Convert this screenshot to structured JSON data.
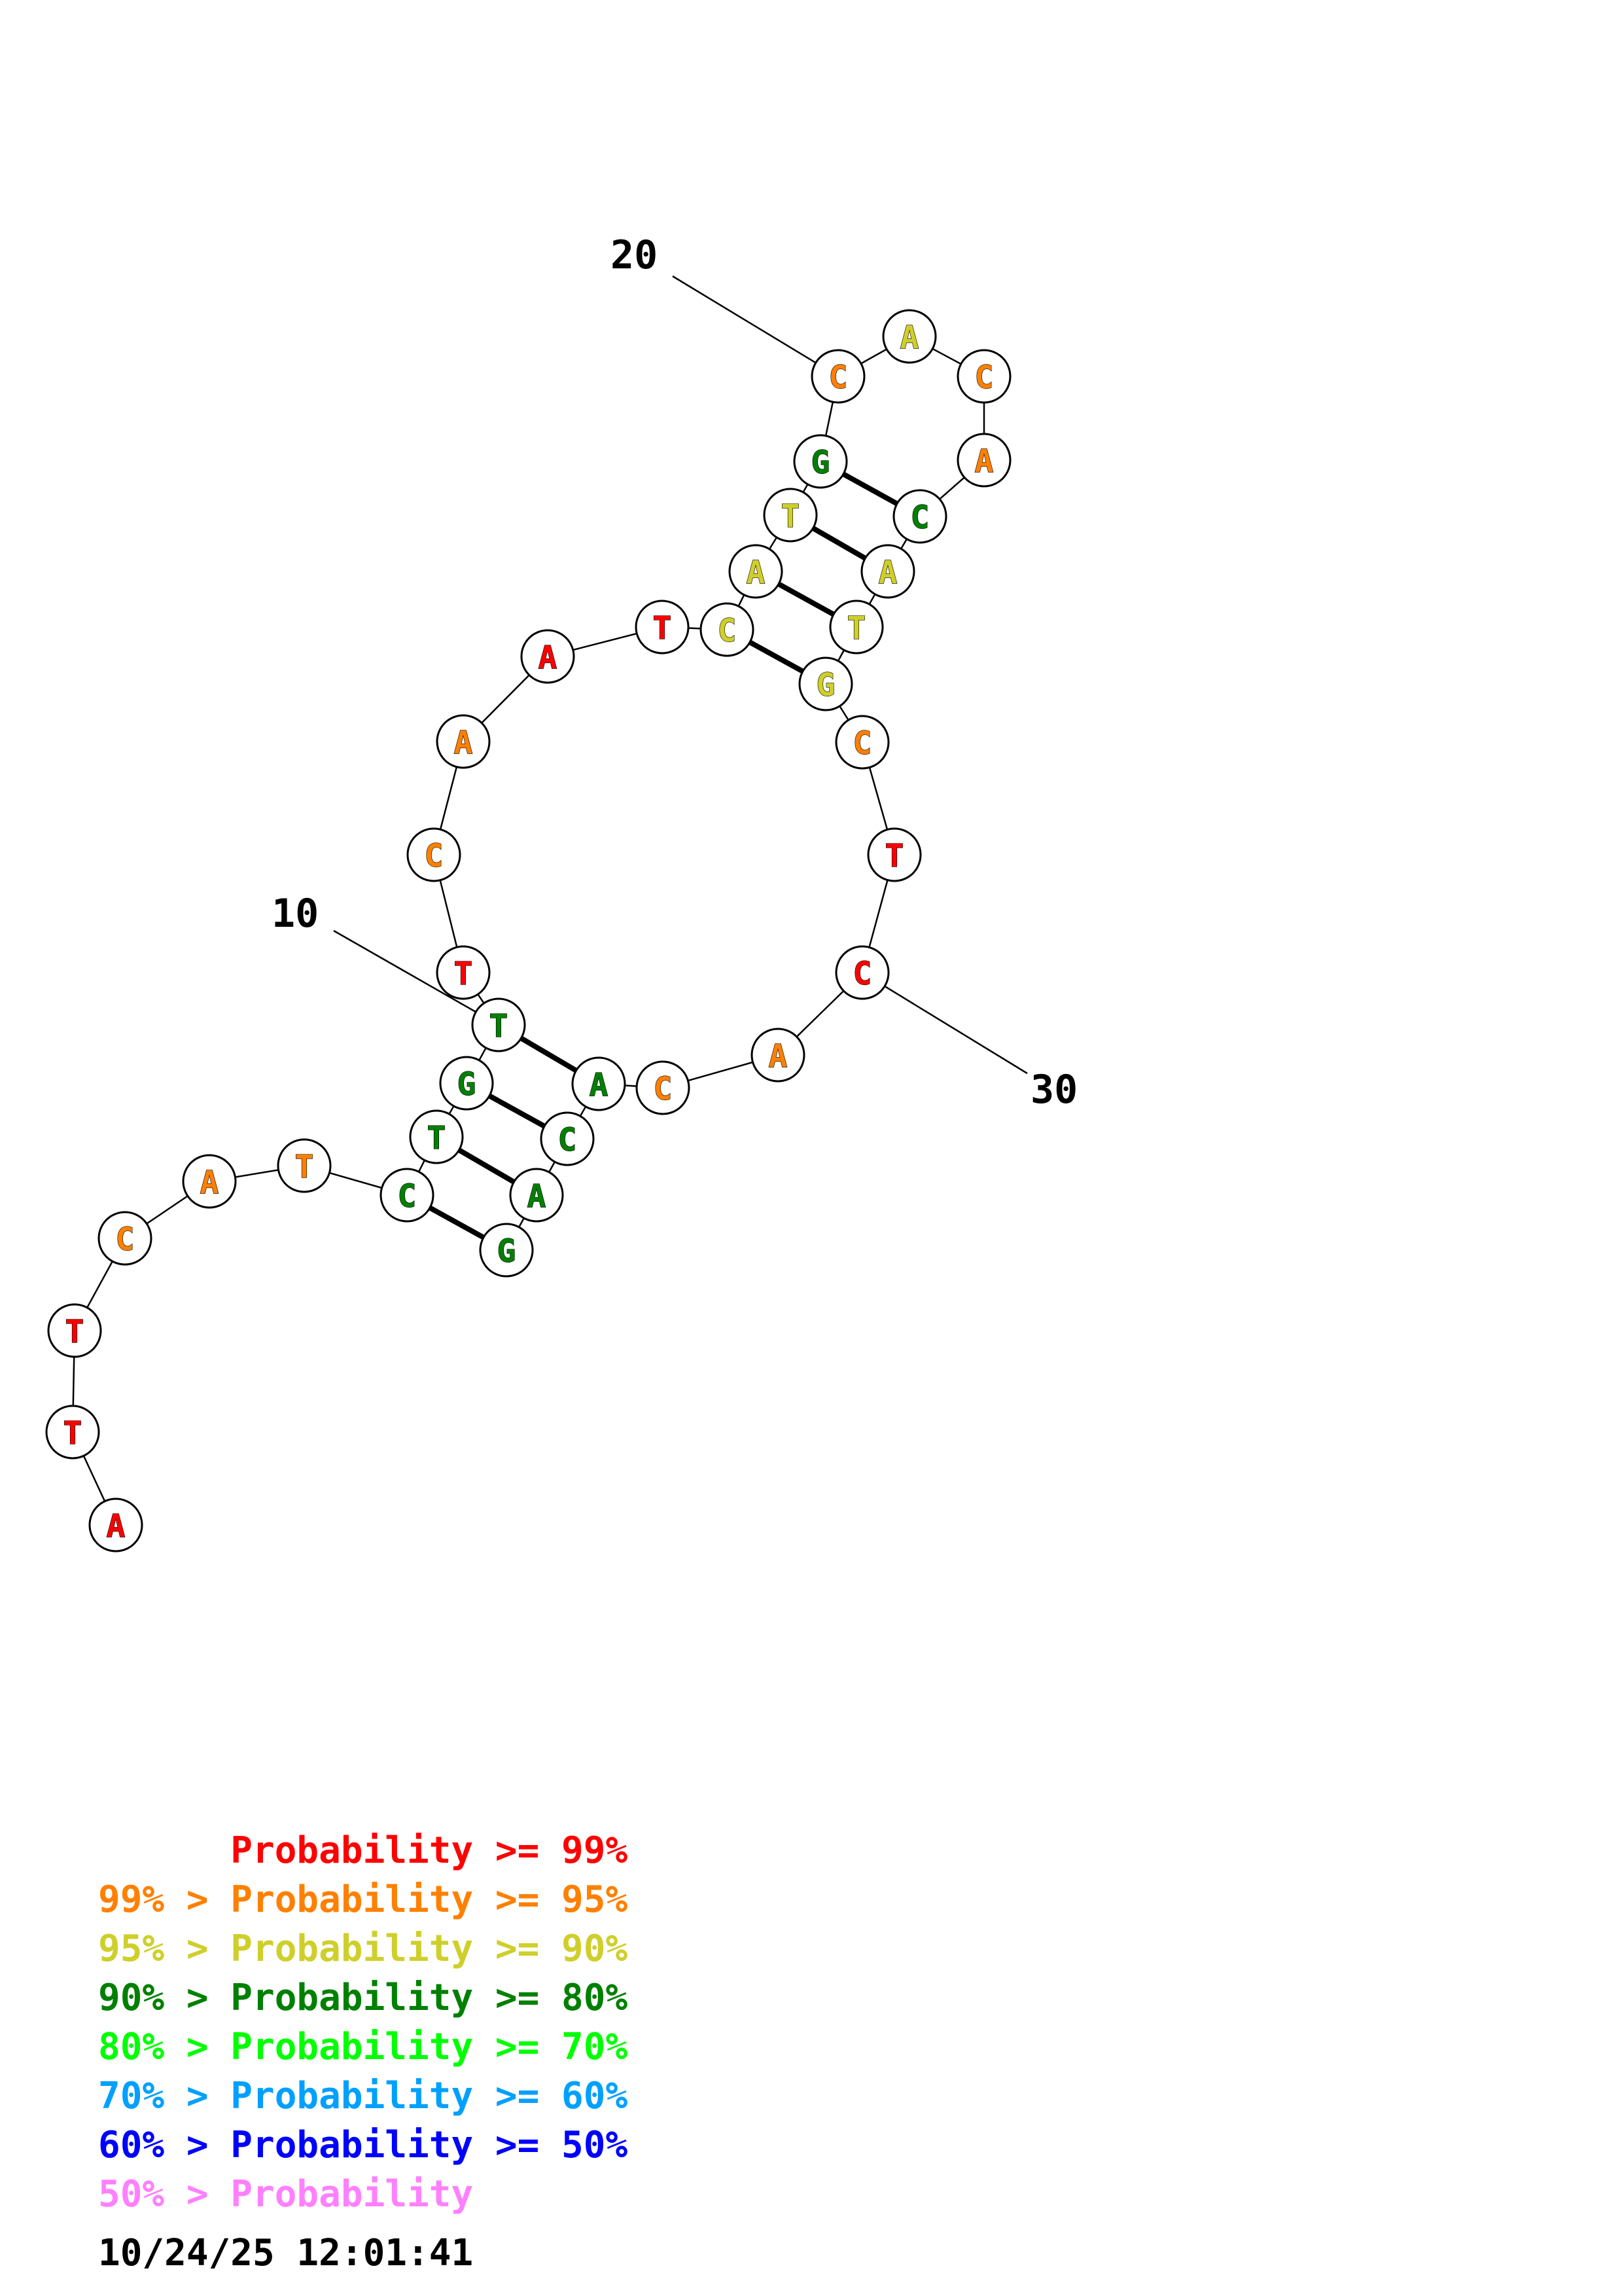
{
  "sequence": [
    "A",
    "T",
    "T",
    "C",
    "A",
    "T",
    "C",
    "T",
    "G",
    "T",
    "T",
    "C",
    "A",
    "A",
    "T",
    "C",
    "A",
    "T",
    "G",
    "C",
    "A",
    "C",
    "A",
    "C",
    "A",
    "T",
    "G",
    "C",
    "T",
    "C",
    "A",
    "C",
    "A",
    "C",
    "A",
    "G"
  ],
  "nucleotides": [
    {
      "pos": 1,
      "base": "A",
      "prob_class": "p99"
    },
    {
      "pos": 2,
      "base": "T",
      "prob_class": "p99"
    },
    {
      "pos": 3,
      "base": "T",
      "prob_class": "p99"
    },
    {
      "pos": 4,
      "base": "C",
      "prob_class": "p95"
    },
    {
      "pos": 5,
      "base": "A",
      "prob_class": "p95"
    },
    {
      "pos": 6,
      "base": "T",
      "prob_class": "p95"
    },
    {
      "pos": 7,
      "base": "C",
      "prob_class": "p80"
    },
    {
      "pos": 8,
      "base": "T",
      "prob_class": "p80"
    },
    {
      "pos": 9,
      "base": "G",
      "prob_class": "p80"
    },
    {
      "pos": 10,
      "base": "T",
      "prob_class": "p80"
    },
    {
      "pos": 11,
      "base": "T",
      "prob_class": "p99"
    },
    {
      "pos": 12,
      "base": "C",
      "prob_class": "p95"
    },
    {
      "pos": 13,
      "base": "A",
      "prob_class": "p95"
    },
    {
      "pos": 14,
      "base": "A",
      "prob_class": "p99"
    },
    {
      "pos": 15,
      "base": "T",
      "prob_class": "p99"
    },
    {
      "pos": 16,
      "base": "C",
      "prob_class": "p90"
    },
    {
      "pos": 17,
      "base": "A",
      "prob_class": "p90"
    },
    {
      "pos": 18,
      "base": "T",
      "prob_class": "p90"
    },
    {
      "pos": 19,
      "base": "G",
      "prob_class": "p80"
    },
    {
      "pos": 20,
      "base": "C",
      "prob_class": "p95"
    },
    {
      "pos": 21,
      "base": "A",
      "prob_class": "p90"
    },
    {
      "pos": 22,
      "base": "C",
      "prob_class": "p95"
    },
    {
      "pos": 23,
      "base": "A",
      "prob_class": "p95"
    },
    {
      "pos": 24,
      "base": "C",
      "prob_class": "p80"
    },
    {
      "pos": 25,
      "base": "A",
      "prob_class": "p90"
    },
    {
      "pos": 26,
      "base": "T",
      "prob_class": "p90"
    },
    {
      "pos": 27,
      "base": "G",
      "prob_class": "p90"
    },
    {
      "pos": 28,
      "base": "C",
      "prob_class": "p95"
    },
    {
      "pos": 29,
      "base": "T",
      "prob_class": "p99"
    },
    {
      "pos": 30,
      "base": "C",
      "prob_class": "p99"
    },
    {
      "pos": 31,
      "base": "A",
      "prob_class": "p95"
    },
    {
      "pos": 32,
      "base": "C",
      "prob_class": "p95"
    },
    {
      "pos": 33,
      "base": "A",
      "prob_class": "p80"
    },
    {
      "pos": 34,
      "base": "C",
      "prob_class": "p80"
    },
    {
      "pos": 35,
      "base": "A",
      "prob_class": "p80"
    },
    {
      "pos": 36,
      "base": "G",
      "prob_class": "p80"
    }
  ],
  "base_pairs": [
    [
      7,
      36
    ],
    [
      8,
      35
    ],
    [
      9,
      34
    ],
    [
      10,
      33
    ],
    [
      16,
      27
    ],
    [
      17,
      26
    ],
    [
      18,
      25
    ],
    [
      19,
      24
    ]
  ],
  "position_markers": [
    {
      "pos": 10,
      "label": "10"
    },
    {
      "pos": 20,
      "label": "20"
    },
    {
      "pos": 30,
      "label": "30"
    }
  ],
  "legend": [
    {
      "id": "p99",
      "lower": "",
      "sep": "",
      "label": "Probability",
      "op": ">=",
      "upper": "99%",
      "color": "#ff0000"
    },
    {
      "id": "p95",
      "lower": "99%",
      "sep": ">",
      "label": "Probability",
      "op": ">=",
      "upper": "95%",
      "color": "#ff8000"
    },
    {
      "id": "p90",
      "lower": "95%",
      "sep": ">",
      "label": "Probability",
      "op": ">=",
      "upper": "90%",
      "color": "#cfcf2b"
    },
    {
      "id": "p80",
      "lower": "90%",
      "sep": ">",
      "label": "Probability",
      "op": ">=",
      "upper": "80%",
      "color": "#008000"
    },
    {
      "id": "p70",
      "lower": "80%",
      "sep": ">",
      "label": "Probability",
      "op": ">=",
      "upper": "70%",
      "color": "#00ff00"
    },
    {
      "id": "p60",
      "lower": "70%",
      "sep": ">",
      "label": "Probability",
      "op": ">=",
      "upper": "60%",
      "color": "#00a0ff"
    },
    {
      "id": "p50",
      "lower": "60%",
      "sep": ">",
      "label": "Probability",
      "op": ">=",
      "upper": "50%",
      "color": "#0000ff"
    },
    {
      "id": "plow",
      "lower": "50%",
      "sep": ">",
      "label": "Probability",
      "op": "",
      "upper": "",
      "color": "#ff80ff"
    }
  ],
  "timestamp": "10/24/25 12:01:41"
}
